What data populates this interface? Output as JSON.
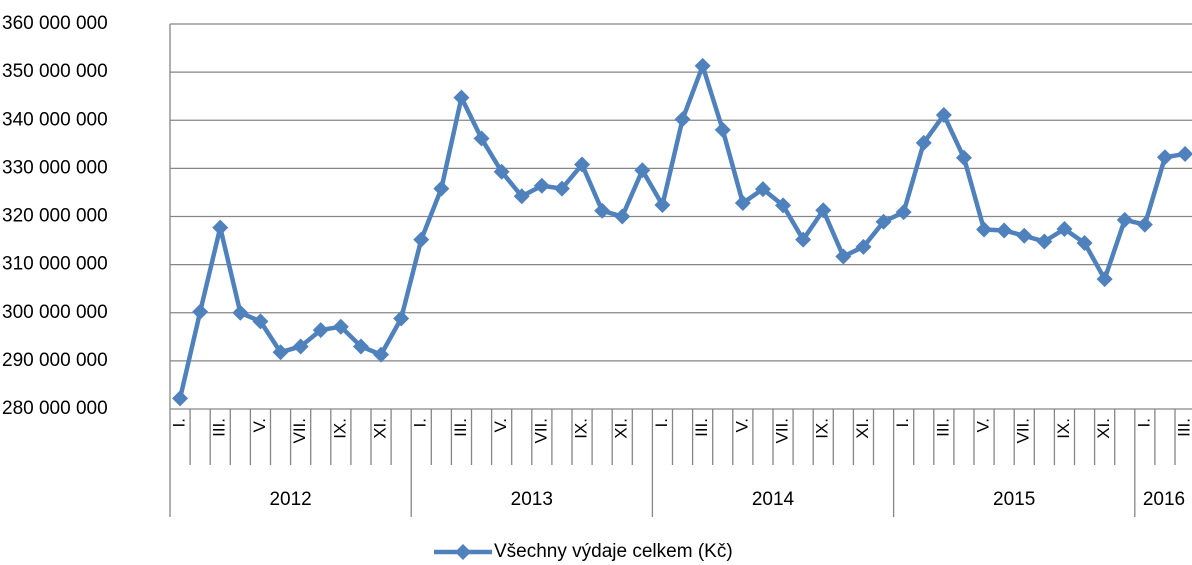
{
  "chart_data": {
    "type": "line",
    "categories": [
      "I.",
      null,
      "III.",
      null,
      "V.",
      null,
      "VII.",
      null,
      "IX.",
      null,
      "XI.",
      null,
      "I.",
      null,
      "III.",
      null,
      "V.",
      null,
      "VII.",
      null,
      "IX.",
      null,
      "XI.",
      null,
      "I.",
      null,
      "III.",
      null,
      "V.",
      null,
      "VII.",
      null,
      "IX.",
      null,
      "XI.",
      null,
      "I.",
      null,
      "III.",
      null,
      "V.",
      null,
      "VII.",
      null,
      "IX.",
      null,
      "XI.",
      null,
      "I.",
      null,
      "III."
    ],
    "years": [
      "2012",
      "2013",
      "2014",
      "2015",
      "2016"
    ],
    "series": [
      {
        "name": "Všechny výdaje celkem (Kč)",
        "color": "#4f81bd",
        "values": [
          282200000,
          300200000,
          317700000,
          300000000,
          298200000,
          291800000,
          293000000,
          296400000,
          297100000,
          293000000,
          291300000,
          298800000,
          315200000,
          325800000,
          344700000,
          336200000,
          329300000,
          324200000,
          326400000,
          325800000,
          330800000,
          321200000,
          320000000,
          329600000,
          322400000,
          340200000,
          351300000,
          338000000,
          322800000,
          325700000,
          322300000,
          315200000,
          321300000,
          311700000,
          313700000,
          318900000,
          320900000,
          335300000,
          341100000,
          332200000,
          317300000,
          317100000,
          316000000,
          314800000,
          317400000,
          314500000,
          307000000,
          319300000,
          318300000,
          332300000,
          333000000
        ]
      }
    ],
    "ylim": [
      280000000,
      360000000
    ],
    "yticks": [
      {
        "value": 280000000,
        "label": "280 000 000"
      },
      {
        "value": 290000000,
        "label": "290 000 000"
      },
      {
        "value": 300000000,
        "label": "300 000 000"
      },
      {
        "value": 310000000,
        "label": "310 000 000"
      },
      {
        "value": 320000000,
        "label": "320 000 000"
      },
      {
        "value": 330000000,
        "label": "330 000 000"
      },
      {
        "value": 340000000,
        "label": "340 000 000"
      },
      {
        "value": 350000000,
        "label": "350 000 000"
      },
      {
        "value": 360000000,
        "label": "360 000 000"
      }
    ],
    "grid": true
  }
}
